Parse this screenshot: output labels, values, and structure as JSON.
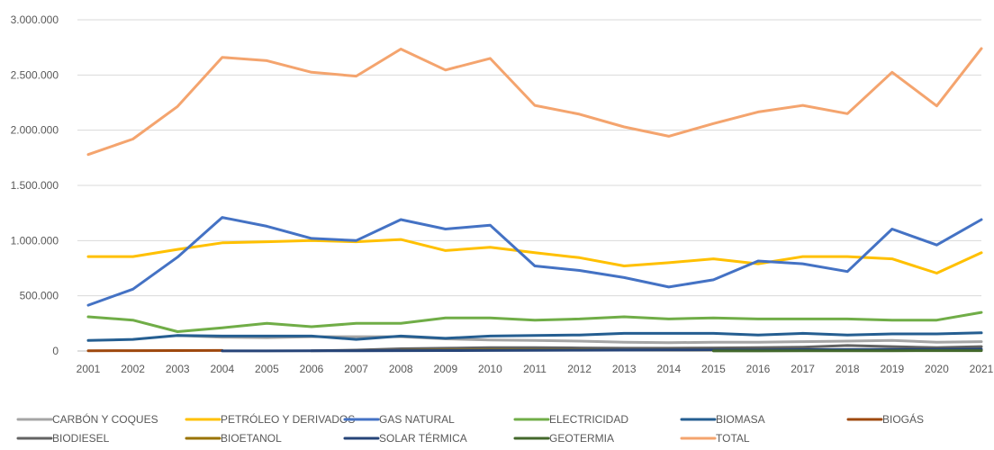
{
  "chart_data": {
    "type": "line",
    "title": "",
    "xlabel": "",
    "ylabel": "",
    "grid": true,
    "legend": "bottom",
    "x": [
      "2001",
      "2002",
      "2003",
      "2004",
      "2005",
      "2006",
      "2007",
      "2008",
      "2009",
      "2010",
      "2011",
      "2012",
      "2013",
      "2014",
      "2015",
      "2016",
      "2017",
      "2018",
      "2019",
      "2020",
      "2021"
    ],
    "ylim": [
      0,
      3000000
    ],
    "yticks": [
      0,
      500000,
      1000000,
      1500000,
      2000000,
      2500000,
      3000000
    ],
    "ytick_labels": [
      "0",
      "500.000",
      "1.000.000",
      "1.500.000",
      "2.000.000",
      "2.500.000",
      "3.000.000"
    ],
    "series": [
      {
        "name": "CARBÓN Y COQUES",
        "color": "#a5a5a5",
        "values": [
          null,
          null,
          140000,
          125000,
          120000,
          130000,
          130000,
          130000,
          110000,
          100000,
          95000,
          90000,
          80000,
          75000,
          80000,
          80000,
          85000,
          90000,
          95000,
          80000,
          85000
        ]
      },
      {
        "name": "PETRÓLEO Y DERIVADOS",
        "color": "#ffc000",
        "values": [
          855000,
          855000,
          920000,
          980000,
          990000,
          1000000,
          990000,
          1010000,
          910000,
          940000,
          890000,
          845000,
          770000,
          800000,
          835000,
          790000,
          855000,
          855000,
          835000,
          705000,
          890000
        ]
      },
      {
        "name": "GAS NATURAL",
        "color": "#4472c4",
        "values": [
          415000,
          560000,
          850000,
          1210000,
          1130000,
          1020000,
          1000000,
          1190000,
          1105000,
          1140000,
          770000,
          730000,
          665000,
          580000,
          645000,
          815000,
          790000,
          720000,
          1105000,
          960000,
          1190000
        ]
      },
      {
        "name": "ELECTRICIDAD",
        "color": "#70ad47",
        "values": [
          310000,
          280000,
          175000,
          210000,
          250000,
          220000,
          250000,
          250000,
          300000,
          300000,
          280000,
          290000,
          310000,
          290000,
          300000,
          290000,
          290000,
          290000,
          280000,
          280000,
          350000
        ]
      },
      {
        "name": "BIOMASA",
        "color": "#255e91",
        "values": [
          95000,
          105000,
          140000,
          135000,
          135000,
          135000,
          105000,
          135000,
          115000,
          135000,
          140000,
          145000,
          160000,
          160000,
          160000,
          145000,
          160000,
          145000,
          155000,
          155000,
          165000
        ]
      },
      {
        "name": "BIOGÁS",
        "color": "#9e480e",
        "values": [
          2000,
          3000,
          4000,
          5000,
          null,
          null,
          null,
          null,
          null,
          null,
          null,
          null,
          null,
          null,
          null,
          null,
          null,
          null,
          null,
          null,
          null
        ]
      },
      {
        "name": "BIODIESEL",
        "color": "#636363",
        "values": [
          null,
          null,
          null,
          null,
          null,
          2000,
          8000,
          20000,
          25000,
          30000,
          30000,
          28000,
          25000,
          25000,
          28000,
          30000,
          35000,
          50000,
          40000,
          30000,
          40000
        ]
      },
      {
        "name": "BIOETANOL",
        "color": "#997300",
        "values": [
          null,
          null,
          null,
          null,
          null,
          null,
          null,
          5000,
          8000,
          10000,
          10000,
          10000,
          8000,
          8000,
          9000,
          10000,
          10000,
          12000,
          12000,
          10000,
          12000
        ]
      },
      {
        "name": "SOLAR TÉRMICA",
        "color": "#264478",
        "values": [
          null,
          null,
          null,
          1000,
          1000,
          2000,
          2000,
          3000,
          4000,
          5000,
          6000,
          7000,
          8000,
          9000,
          10000,
          11000,
          12000,
          13000,
          14000,
          15000,
          16000
        ]
      },
      {
        "name": "GEOTERMIA",
        "color": "#43682b",
        "values": [
          null,
          null,
          null,
          null,
          null,
          null,
          null,
          null,
          null,
          null,
          null,
          null,
          null,
          null,
          500,
          1000,
          1500,
          2000,
          2500,
          3000,
          3500
        ]
      },
      {
        "name": "TOTAL",
        "color": "#f4a46e",
        "values": [
          1780000,
          1920000,
          2215000,
          2660000,
          2630000,
          2525000,
          2490000,
          2735000,
          2545000,
          2650000,
          2225000,
          2145000,
          2030000,
          1945000,
          2060000,
          2165000,
          2225000,
          2150000,
          2525000,
          2220000,
          2740000
        ]
      }
    ]
  }
}
